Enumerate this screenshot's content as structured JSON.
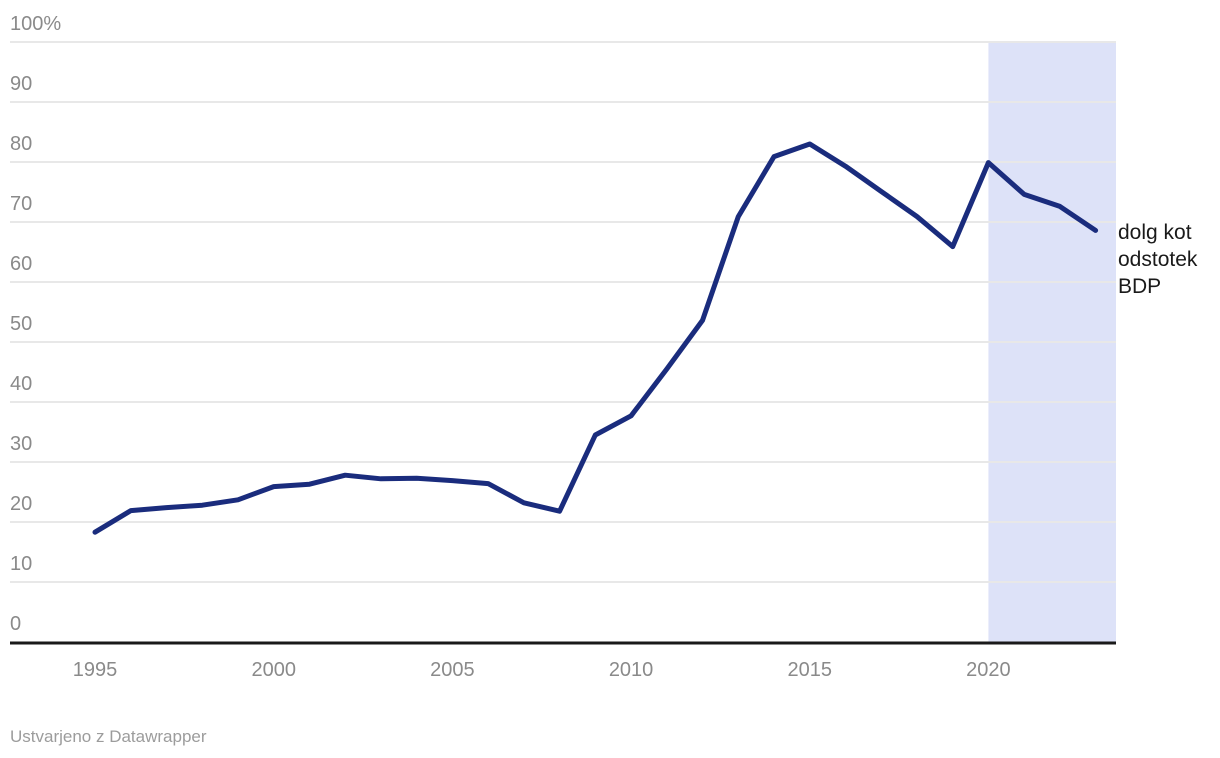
{
  "chart_data": {
    "type": "line",
    "title": "",
    "xlabel": "",
    "ylabel": "",
    "x": [
      1995,
      1996,
      1997,
      1998,
      1999,
      2000,
      2001,
      2002,
      2003,
      2004,
      2005,
      2006,
      2007,
      2008,
      2009,
      2010,
      2011,
      2012,
      2013,
      2014,
      2015,
      2016,
      2017,
      2018,
      2019,
      2020,
      2021,
      2022,
      2023
    ],
    "series": [
      {
        "name": "dolg kot odstotek BDP",
        "values": [
          18.3,
          21.9,
          22.4,
          22.8,
          23.7,
          25.9,
          26.3,
          27.8,
          27.2,
          27.3,
          26.9,
          26.4,
          23.2,
          21.8,
          34.5,
          37.7,
          45.5,
          53.6,
          70.9,
          80.9,
          83.0,
          79.3,
          75.1,
          70.9,
          65.9,
          79.9,
          74.6,
          72.6,
          68.6
        ]
      }
    ],
    "ylim": [
      0,
      100
    ],
    "xlim": [
      1992.62,
      2023.57
    ],
    "grid": "horizontal",
    "legend": "none",
    "y_ticks": [
      {
        "label": "100%",
        "value": 100
      },
      {
        "label": "90",
        "value": 90
      },
      {
        "label": "80",
        "value": 80
      },
      {
        "label": "70",
        "value": 70
      },
      {
        "label": "60",
        "value": 60
      },
      {
        "label": "50",
        "value": 50
      },
      {
        "label": "40",
        "value": 40
      },
      {
        "label": "30",
        "value": 30
      },
      {
        "label": "20",
        "value": 20
      },
      {
        "label": "10",
        "value": 10
      },
      {
        "label": "0",
        "value": 0
      }
    ],
    "x_ticks": [
      {
        "label": "1995",
        "value": 1995
      },
      {
        "label": "2000",
        "value": 2000
      },
      {
        "label": "2005",
        "value": 2005
      },
      {
        "label": "2010",
        "value": 2010
      },
      {
        "label": "2015",
        "value": 2015
      },
      {
        "label": "2020",
        "value": 2020
      }
    ],
    "highlight_range": {
      "from": 2020,
      "to": 2023.57,
      "color": "#dde2f8"
    },
    "colors": {
      "line": "#1a2c7d",
      "gridline": "#e8e8e8",
      "axis_line": "#1a1a1a",
      "tick_label": "#8a8a8a",
      "annotation_text": "#1a1a1a"
    },
    "annotation": {
      "text": "dolg kot odstotek BDP",
      "lines": [
        "dolg kot",
        "odstotek",
        "BDP"
      ]
    }
  },
  "footer": {
    "text": "Ustvarjeno z Datawrapper"
  }
}
